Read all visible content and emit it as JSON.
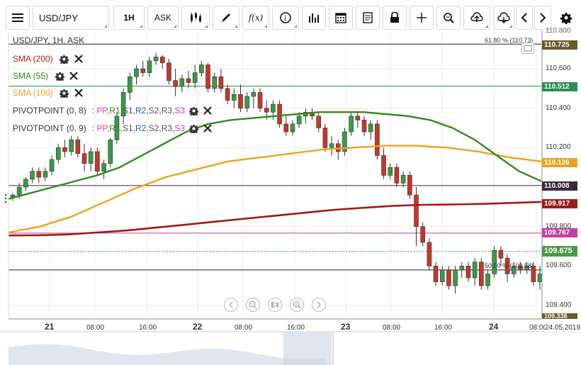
{
  "toolbar": {
    "symbol": "USD/JPY",
    "timeframe": "1H",
    "price_type": "ASK"
  },
  "chart_title": "USD/JPY, 1H, ASK",
  "indicators": [
    {
      "label": "SMA (200)",
      "color": "#b71c1c"
    },
    {
      "label": "SMA (55)",
      "color": "#2e8b1e"
    },
    {
      "label": "SMA (100)",
      "color": "#f0a020"
    }
  ],
  "pivots": [
    {
      "label": "PIVOTPOINT (0, 8)",
      "parts": [
        ": PP,",
        " R1,",
        " S1,",
        " R2,",
        " S2,",
        " R3,",
        " S3"
      ]
    },
    {
      "label": "PIVOTPOINT (0, 9)",
      "parts": [
        ": PP,",
        " R1,",
        " S1,",
        " R2,",
        " S2,",
        " R3,",
        " S3"
      ]
    }
  ],
  "pivot_colors": [
    "#555555",
    "#e040a0",
    "#2e8b1e",
    "#555555",
    "#1565c0",
    "#555555",
    "#555555",
    "#c040c0"
  ],
  "price_axis": {
    "labels": [
      "110.600",
      "110.400",
      "110.200",
      "109.800",
      "109.600",
      "109.400"
    ],
    "top_partial": "110.800",
    "bottom_tag": "109.338"
  },
  "price_tags": [
    {
      "text": "110.725",
      "bg": "#6b5a2a"
    },
    {
      "text": "110.512",
      "bg": "#2e8b57"
    },
    {
      "text": "110.126",
      "bg": "#f0a020"
    },
    {
      "text": "110.008",
      "bg": "#3a2a3a"
    },
    {
      "text": "109.917",
      "bg": "#9b1c1c"
    },
    {
      "text": "109.767",
      "bg": "#c040a0"
    },
    {
      "text": "109.675",
      "bg": "#4a9a4a"
    }
  ],
  "fib_labels": [
    "61.80 % (110.73)",
    "50.00 % (109.58)"
  ],
  "time_axis": {
    "labels": [
      {
        "text": "21",
        "big": true
      },
      {
        "text": "08:00",
        "big": false
      },
      {
        "text": "16:00",
        "big": false
      },
      {
        "text": "22",
        "big": true
      },
      {
        "text": "08:00",
        "big": false
      },
      {
        "text": "16:00",
        "big": false
      },
      {
        "text": "23",
        "big": true
      },
      {
        "text": "08:00",
        "big": false
      },
      {
        "text": "16:00",
        "big": false
      },
      {
        "text": "24",
        "big": true
      },
      {
        "text": "08:00",
        "big": false
      }
    ],
    "date": "24.05.2019"
  },
  "colors": {
    "bull": "#3a9a4a",
    "bear": "#c8352a",
    "sma55": "#2e8b1e",
    "sma100": "#f0a020",
    "sma200": "#a01818"
  },
  "chart_data": {
    "type": "candlestick",
    "title": "USD/JPY, 1H, ASK",
    "ylim": [
      109.33,
      110.8
    ],
    "candles": [
      [
        109.95,
        109.97,
        109.93,
        109.96
      ],
      [
        109.96,
        110.02,
        109.94,
        110.0
      ],
      [
        110.0,
        110.05,
        109.98,
        110.04
      ],
      [
        110.04,
        110.1,
        110.02,
        110.08
      ],
      [
        110.08,
        110.1,
        110.02,
        110.05
      ],
      [
        110.05,
        110.1,
        110.03,
        110.08
      ],
      [
        110.08,
        110.16,
        110.06,
        110.14
      ],
      [
        110.14,
        110.22,
        110.12,
        110.2
      ],
      [
        110.2,
        110.24,
        110.15,
        110.18
      ],
      [
        110.18,
        110.26,
        110.16,
        110.24
      ],
      [
        110.24,
        110.26,
        110.15,
        110.17
      ],
      [
        110.17,
        110.22,
        110.08,
        110.12
      ],
      [
        110.12,
        110.2,
        110.08,
        110.18
      ],
      [
        110.18,
        110.2,
        110.06,
        110.08
      ],
      [
        110.08,
        110.14,
        110.04,
        110.12
      ],
      [
        110.12,
        110.25,
        110.1,
        110.24
      ],
      [
        110.24,
        110.38,
        110.22,
        110.36
      ],
      [
        110.36,
        110.5,
        110.32,
        110.48
      ],
      [
        110.48,
        110.58,
        110.44,
        110.56
      ],
      [
        110.56,
        110.62,
        110.52,
        110.6
      ],
      [
        110.6,
        110.64,
        110.56,
        110.58
      ],
      [
        110.58,
        110.66,
        110.56,
        110.64
      ],
      [
        110.64,
        110.68,
        110.62,
        110.66
      ],
      [
        110.66,
        110.67,
        110.6,
        110.63
      ],
      [
        110.63,
        110.65,
        110.52,
        110.54
      ],
      [
        110.54,
        110.6,
        110.46,
        110.51
      ],
      [
        110.51,
        110.57,
        110.48,
        110.55
      ],
      [
        110.55,
        110.59,
        110.5,
        110.53
      ],
      [
        110.53,
        110.62,
        110.5,
        110.58
      ],
      [
        110.58,
        110.64,
        110.56,
        110.62
      ],
      [
        110.62,
        110.63,
        110.48,
        110.5
      ],
      [
        110.5,
        110.58,
        110.48,
        110.56
      ],
      [
        110.56,
        110.6,
        110.48,
        110.5
      ],
      [
        110.5,
        110.52,
        110.42,
        110.44
      ],
      [
        110.44,
        110.5,
        110.4,
        110.47
      ],
      [
        110.47,
        110.52,
        110.38,
        110.4
      ],
      [
        110.4,
        110.48,
        110.38,
        110.46
      ],
      [
        110.46,
        110.5,
        110.4,
        110.48
      ],
      [
        110.48,
        110.5,
        110.38,
        110.4
      ],
      [
        110.4,
        110.44,
        110.34,
        110.38
      ],
      [
        110.38,
        110.44,
        110.34,
        110.42
      ],
      [
        110.42,
        110.44,
        110.3,
        110.32
      ],
      [
        110.32,
        110.36,
        110.26,
        110.28
      ],
      [
        110.28,
        110.34,
        110.26,
        110.32
      ],
      [
        110.32,
        110.38,
        110.3,
        110.36
      ],
      [
        110.36,
        110.4,
        110.32,
        110.38
      ],
      [
        110.38,
        110.4,
        110.34,
        110.36
      ],
      [
        110.36,
        110.38,
        110.28,
        110.3
      ],
      [
        110.3,
        110.32,
        110.18,
        110.2
      ],
      [
        110.2,
        110.26,
        110.16,
        110.22
      ],
      [
        110.22,
        110.24,
        110.14,
        110.18
      ],
      [
        110.18,
        110.3,
        110.16,
        110.28
      ],
      [
        110.28,
        110.38,
        110.26,
        110.36
      ],
      [
        110.36,
        110.38,
        110.3,
        110.34
      ],
      [
        110.34,
        110.36,
        110.26,
        110.28
      ],
      [
        110.28,
        110.34,
        110.24,
        110.32
      ],
      [
        110.32,
        110.34,
        110.14,
        110.16
      ],
      [
        110.16,
        110.2,
        110.04,
        110.06
      ],
      [
        110.06,
        110.12,
        110.04,
        110.1
      ],
      [
        110.1,
        110.12,
        110.0,
        110.02
      ],
      [
        110.02,
        110.08,
        110.0,
        110.06
      ],
      [
        110.06,
        110.08,
        109.94,
        109.96
      ],
      [
        109.96,
        110.0,
        109.7,
        109.8
      ],
      [
        109.8,
        109.82,
        109.7,
        109.72
      ],
      [
        109.72,
        109.74,
        109.58,
        109.6
      ],
      [
        109.6,
        109.62,
        109.5,
        109.52
      ],
      [
        109.52,
        109.6,
        109.5,
        109.58
      ],
      [
        109.58,
        109.6,
        109.48,
        109.5
      ],
      [
        109.5,
        109.6,
        109.46,
        109.58
      ],
      [
        109.58,
        109.62,
        109.54,
        109.6
      ],
      [
        109.6,
        109.62,
        109.52,
        109.54
      ],
      [
        109.54,
        109.64,
        109.5,
        109.62
      ],
      [
        109.62,
        109.64,
        109.48,
        109.5
      ],
      [
        109.5,
        109.58,
        109.48,
        109.56
      ],
      [
        109.56,
        109.7,
        109.54,
        109.68
      ],
      [
        109.68,
        109.7,
        109.6,
        109.64
      ],
      [
        109.64,
        109.66,
        109.52,
        109.56
      ],
      [
        109.56,
        109.62,
        109.54,
        109.6
      ],
      [
        109.6,
        109.62,
        109.56,
        109.58
      ],
      [
        109.58,
        109.62,
        109.56,
        109.6
      ],
      [
        109.6,
        109.62,
        109.5,
        109.52
      ],
      [
        109.52,
        109.6,
        109.48,
        109.56
      ]
    ],
    "sma55": [
      109.94,
      109.97,
      110.0,
      110.03,
      110.06,
      110.1,
      110.16,
      110.22,
      110.28,
      110.32,
      110.34,
      110.35,
      110.36,
      110.37,
      110.38,
      110.38,
      110.38,
      110.37,
      110.36,
      110.34,
      110.3,
      110.24,
      110.16,
      110.08,
      110.03
    ],
    "sma100": [
      109.77,
      109.8,
      109.85,
      109.92,
      109.99,
      110.05,
      110.09,
      110.13,
      110.15,
      110.17,
      110.19,
      110.2,
      110.21,
      110.21,
      110.2,
      110.18,
      110.15,
      110.13
    ],
    "sma200": [
      109.755,
      109.756,
      109.76,
      109.77,
      109.78,
      109.795,
      109.81,
      109.825,
      109.84,
      109.855,
      109.87,
      109.885,
      109.895,
      109.905,
      109.91,
      109.912,
      109.915,
      109.92,
      109.925
    ]
  }
}
